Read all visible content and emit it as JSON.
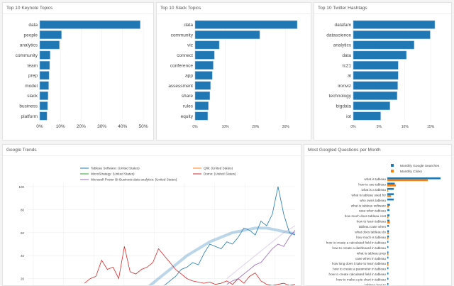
{
  "colors": {
    "bar": "#1f77b4",
    "orange": "#ff7f0e",
    "green": "#2ca02c",
    "red": "#d62728",
    "purple": "#9467bd"
  },
  "chart_data": [
    {
      "id": "keynote",
      "type": "bar",
      "orientation": "horizontal",
      "title": "Top 10 Keynote Topics",
      "categories": [
        "data",
        "people",
        "analytics",
        "community",
        "team",
        "prep",
        "model",
        "slack",
        "business",
        "platform"
      ],
      "values": [
        48.5,
        10.5,
        9.5,
        5.0,
        4.8,
        4.5,
        4.3,
        4.0,
        3.8,
        3.5
      ],
      "xlim": [
        0,
        50
      ],
      "ticks": [
        0,
        10,
        20,
        30,
        40,
        50
      ],
      "tick_labels": [
        "0%",
        "10%",
        "20%",
        "30%",
        "40%",
        "50%"
      ],
      "grid": true
    },
    {
      "id": "slack",
      "type": "bar",
      "orientation": "horizontal",
      "title": "Top 10 Slack Topics",
      "categories": [
        "data",
        "community",
        "viz",
        "connect",
        "conference",
        "app",
        "assessment",
        "share",
        "rules",
        "equity"
      ],
      "values": [
        33.8,
        21.4,
        8.0,
        6.4,
        6.0,
        5.7,
        5.1,
        4.9,
        4.4,
        4.2
      ],
      "xlim": [
        0,
        33.8
      ],
      "ticks": [
        0,
        10,
        20,
        30
      ],
      "tick_labels": [
        "0%",
        "10%",
        "20%",
        "30%"
      ],
      "grid": true
    },
    {
      "id": "twitter",
      "type": "bar",
      "orientation": "horizontal",
      "title": "Top 10 Twitter Hashtags",
      "categories": [
        "datafam",
        "datascience",
        "analytics",
        "data",
        "tc21",
        "ai",
        "ironviz",
        "technology",
        "bigdata",
        "iot"
      ],
      "values": [
        15.8,
        14.9,
        11.8,
        10.3,
        8.7,
        8.7,
        8.6,
        8.5,
        7.1,
        5.3
      ],
      "xlim": [
        0,
        15.8
      ],
      "ticks": [
        0,
        5,
        10,
        15
      ],
      "tick_labels": [
        "0%",
        "5%",
        "10%",
        "15%"
      ],
      "grid": true
    },
    {
      "id": "trends",
      "type": "line",
      "title": "Google Trends",
      "ylim": [
        0,
        100
      ],
      "yticks": [
        20,
        40,
        60,
        80,
        100
      ],
      "grid": true,
      "legend": "top",
      "series": [
        {
          "name": "Tableau Software: (United States)",
          "color": "#1f77b4",
          "start": 24,
          "values": [
            14,
            18,
            22,
            28,
            30,
            34,
            32,
            42,
            50,
            48,
            46,
            52,
            50,
            56,
            64,
            62,
            58,
            70,
            66,
            76,
            100,
            76,
            60,
            58
          ]
        },
        {
          "name": "Qlik: (United States)",
          "color": "#ff7f0e",
          "start": 0,
          "values": []
        },
        {
          "name": "MicroStrategy: (United States)",
          "color": "#2ca02c",
          "start": 0,
          "values": []
        },
        {
          "name": "Domo: (United States)",
          "color": "#d62728",
          "start": 10,
          "values": [
            16,
            20,
            22,
            36,
            28,
            30,
            20,
            48,
            26,
            24,
            28,
            30,
            34,
            46,
            40,
            34,
            28,
            24,
            20,
            18,
            17,
            16,
            17,
            15,
            16,
            18,
            15,
            20,
            16,
            22,
            25,
            18,
            15,
            14,
            15,
            16,
            14,
            15
          ]
        },
        {
          "name": "Microsoft Power BI-Business data analytics: (United States)",
          "color": "#9467bd",
          "start": 35,
          "values": [
            15,
            18,
            20,
            24,
            28,
            32,
            34,
            40,
            46,
            50,
            48,
            56,
            62
          ]
        }
      ],
      "trends": [
        {
          "color": "#1f77b4",
          "start": 21,
          "values": [
            12,
            16,
            20,
            24,
            28,
            32,
            36,
            40,
            43,
            46,
            49,
            52,
            54,
            56,
            58,
            60,
            61,
            62,
            63,
            64,
            64,
            64,
            63,
            62,
            61,
            60,
            59
          ]
        },
        {
          "color": "#9467bd",
          "start": 35,
          "values": [
            20,
            24,
            28,
            32,
            36,
            40,
            44,
            48,
            52,
            56,
            60,
            63,
            66
          ]
        }
      ]
    },
    {
      "id": "questions",
      "type": "bar",
      "orientation": "horizontal",
      "title": "Most Googled Questions per Month",
      "legend": "top-right",
      "series": [
        {
          "name": "Monthly Google Searches",
          "color": "#1f77b4"
        },
        {
          "name": "Monthly Clicks",
          "color": "#ff7f0e"
        }
      ],
      "categories": [
        "what is tableau",
        "how to use tableau",
        "what is a tableau",
        "what is tableau used for",
        "who owns tableau",
        "what is tableau software",
        "case when tableau",
        "how much does tableau cost",
        "how to learn tableau",
        "tableau case when",
        "what does tableau do",
        "how much is tableau",
        "how to create a calculated field in tableau",
        "how to create a dashboard in tableau",
        "what is tableau prep",
        "case when in tableau",
        "how long does it take to learn tableau",
        "how to create a parameter in tableau",
        "how to create calculated field in tableau",
        "how to make a pie chart in tableau",
        "tableau how to"
      ],
      "searches": [
        100,
        14,
        12,
        12,
        12,
        5,
        4,
        4,
        4,
        3,
        3,
        3,
        2,
        2,
        2,
        2,
        2,
        2,
        2,
        2,
        2
      ],
      "clicks": [
        76,
        16,
        1,
        7,
        0,
        3,
        0,
        2,
        5,
        0,
        3,
        2,
        0,
        0,
        2,
        0,
        2,
        0,
        0,
        0,
        0
      ]
    }
  ]
}
